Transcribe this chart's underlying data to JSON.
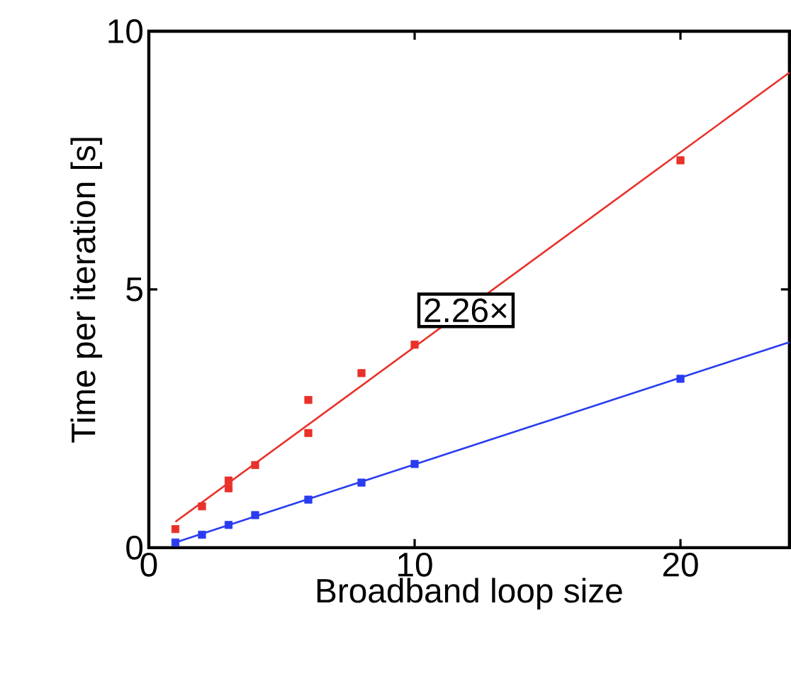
{
  "chart_data": {
    "type": "scatter",
    "xlabel": "Broadband loop size",
    "ylabel": "Time per iteration [s]",
    "xlim": [
      0,
      24.1
    ],
    "ylim": [
      0,
      10
    ],
    "xticks": [
      0,
      10,
      20
    ],
    "yticks": [
      0,
      5,
      10
    ],
    "grid": false,
    "annotations": [
      "2.26×"
    ],
    "series": [
      {
        "marker": "square",
        "color": "#e8312a",
        "x": [
          1,
          2,
          3,
          3,
          4,
          6,
          6,
          8,
          10,
          20
        ],
        "values": [
          0.36,
          0.8,
          1.15,
          1.3,
          1.6,
          2.22,
          2.86,
          3.38,
          3.93,
          7.5
        ]
      },
      {
        "type": "line",
        "marker": "none",
        "color": "#e8312a",
        "x": [
          1,
          24.1
        ],
        "values": [
          0.5,
          9.2
        ]
      },
      {
        "marker": "square",
        "color": "#2a3cf0",
        "x": [
          1,
          2,
          3,
          4,
          6,
          8,
          10,
          20
        ],
        "values": [
          0.1,
          0.25,
          0.44,
          0.63,
          0.93,
          1.26,
          1.62,
          3.27
        ]
      },
      {
        "type": "line",
        "marker": "none",
        "color": "#2a3cf0",
        "x": [
          1,
          24.1
        ],
        "values": [
          0.1,
          3.98
        ]
      }
    ]
  }
}
